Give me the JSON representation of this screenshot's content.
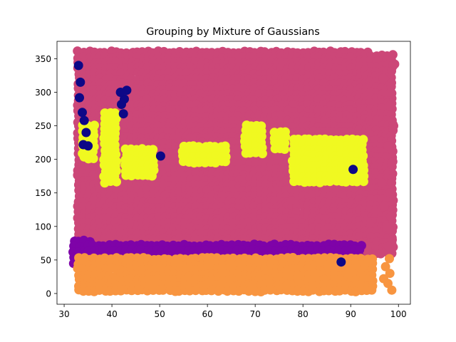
{
  "chart_data": {
    "type": "scatter",
    "title": "Grouping by Mixture of Gaussians",
    "xlabel": "",
    "ylabel": "",
    "xlim": [
      28.5,
      102.5
    ],
    "ylim": [
      -16,
      376
    ],
    "x_ticks": [
      30,
      40,
      50,
      60,
      70,
      80,
      90,
      100
    ],
    "y_ticks": [
      0,
      50,
      100,
      150,
      200,
      250,
      300,
      350
    ],
    "grid": false,
    "legend": "none",
    "series": [
      {
        "color": "#cc4778",
        "regions": [
          {
            "x": [
              33,
              94
            ],
            "y": [
              70,
              360
            ]
          },
          {
            "x": [
              92,
              99
            ],
            "y": [
              60,
              355
            ]
          }
        ],
        "points": [
          [
            97.2,
            300
          ],
          [
            98.4,
            300
          ],
          [
            99.0,
            250
          ],
          [
            97.8,
            220
          ],
          [
            98.6,
            195
          ],
          [
            96.5,
            165
          ],
          [
            98.2,
            150
          ],
          [
            97.0,
            130
          ],
          [
            98.4,
            115
          ],
          [
            97.5,
            100
          ],
          [
            98.7,
            80
          ],
          [
            97.9,
            70
          ],
          [
            99.2,
            342
          ],
          [
            96.8,
            321
          ],
          [
            98.1,
            280
          ]
        ]
      },
      {
        "color": "#f0f921",
        "regions": [
          {
            "x": [
              78,
              93
            ],
            "y": [
              165,
              230
            ]
          },
          {
            "x": [
              38.5,
              41.5
            ],
            "y": [
              160,
              270
            ]
          },
          {
            "x": [
              34,
              37
            ],
            "y": [
              195,
              250
            ]
          },
          {
            "x": [
              43,
              49
            ],
            "y": [
              175,
              215
            ]
          },
          {
            "x": [
              55,
              65
            ],
            "y": [
              190,
              220
            ]
          },
          {
            "x": [
              68,
              72
            ],
            "y": [
              205,
              250
            ]
          },
          {
            "x": [
              74,
              77
            ],
            "y": [
              210,
              240
            ]
          }
        ],
        "points": []
      },
      {
        "color": "#7e03a8",
        "regions": [
          {
            "x": [
              32,
              36
            ],
            "y": [
              45,
              78
            ]
          },
          {
            "x": [
              35,
              93
            ],
            "y": [
              48,
              72
            ]
          }
        ],
        "points": []
      },
      {
        "color": "#f89540",
        "regions": [
          {
            "x": [
              33,
              95
            ],
            "y": [
              2,
              52
            ]
          }
        ],
        "points": [
          [
            97.3,
            40
          ],
          [
            98.2,
            30
          ],
          [
            97.8,
            15
          ],
          [
            98.6,
            5
          ],
          [
            98.1,
            52
          ],
          [
            96.9,
            22
          ]
        ]
      },
      {
        "color": "#0d0887",
        "regions": [],
        "points": [
          [
            33.0,
            340
          ],
          [
            33.4,
            315
          ],
          [
            33.2,
            292
          ],
          [
            33.8,
            270
          ],
          [
            34.2,
            258
          ],
          [
            34.6,
            240
          ],
          [
            34.0,
            222
          ],
          [
            35.0,
            220
          ],
          [
            42.0,
            282
          ],
          [
            42.6,
            290
          ],
          [
            43.1,
            303
          ],
          [
            42.4,
            268
          ],
          [
            41.8,
            300
          ],
          [
            88.0,
            47
          ],
          [
            90.5,
            185
          ],
          [
            50.2,
            205
          ]
        ]
      }
    ]
  }
}
